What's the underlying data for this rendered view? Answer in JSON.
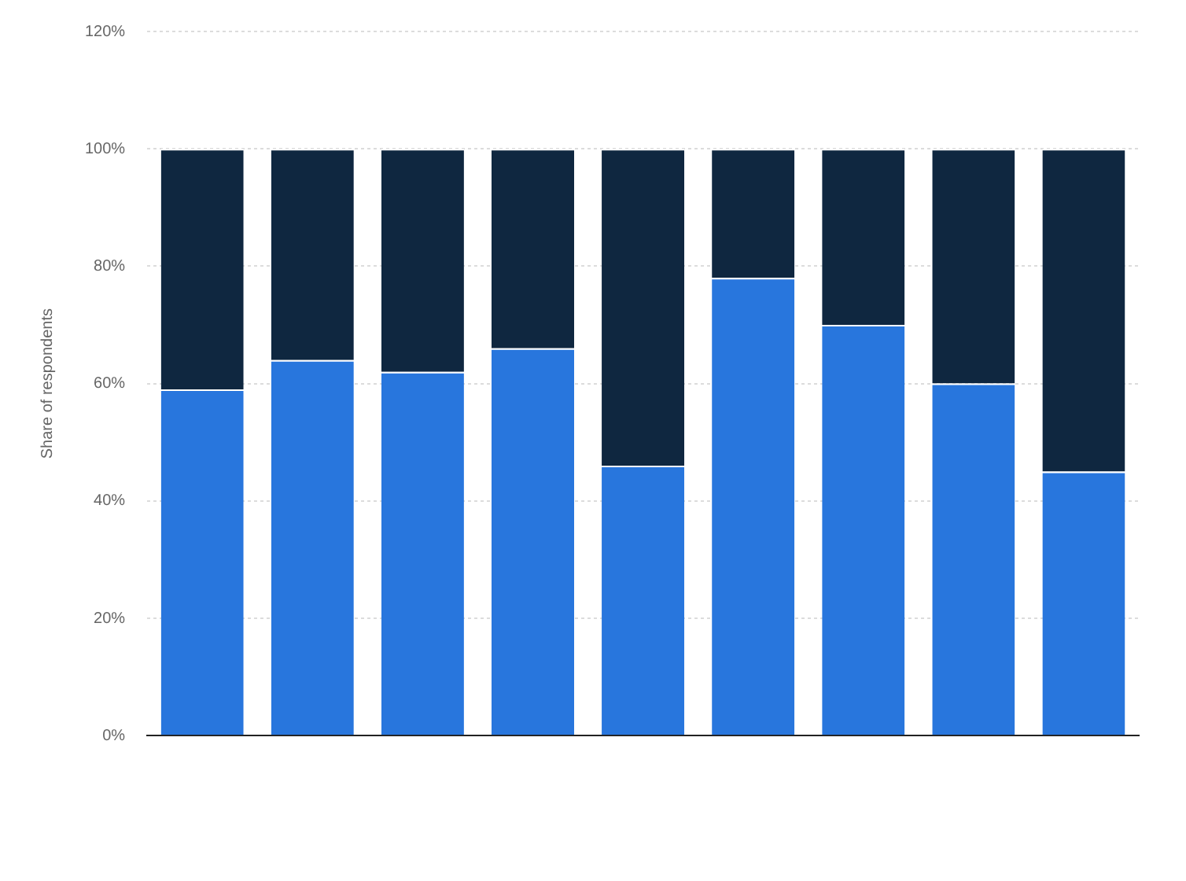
{
  "chart_data": {
    "type": "bar",
    "stacked": true,
    "ylabel": "Share of respondents",
    "categories": [
      null,
      null,
      null,
      null,
      null,
      null,
      null,
      null,
      null
    ],
    "series": [
      {
        "color": "#2876dd",
        "values": [
          59,
          64,
          62,
          66,
          46,
          78,
          70,
          60,
          45
        ]
      },
      {
        "color": "#0f2740",
        "values": [
          41,
          36,
          38,
          34,
          54,
          22,
          30,
          40,
          55
        ]
      }
    ],
    "ylim": [
      0,
      120
    ],
    "yticks": [
      {
        "value": 0,
        "label": "0%"
      },
      {
        "value": 20,
        "label": "20%"
      },
      {
        "value": 40,
        "label": "40%"
      },
      {
        "value": 60,
        "label": "60%"
      },
      {
        "value": 80,
        "label": "80%"
      },
      {
        "value": 100,
        "label": "100%"
      },
      {
        "value": 120,
        "label": "120%"
      }
    ],
    "grid": "y",
    "legend": false
  }
}
